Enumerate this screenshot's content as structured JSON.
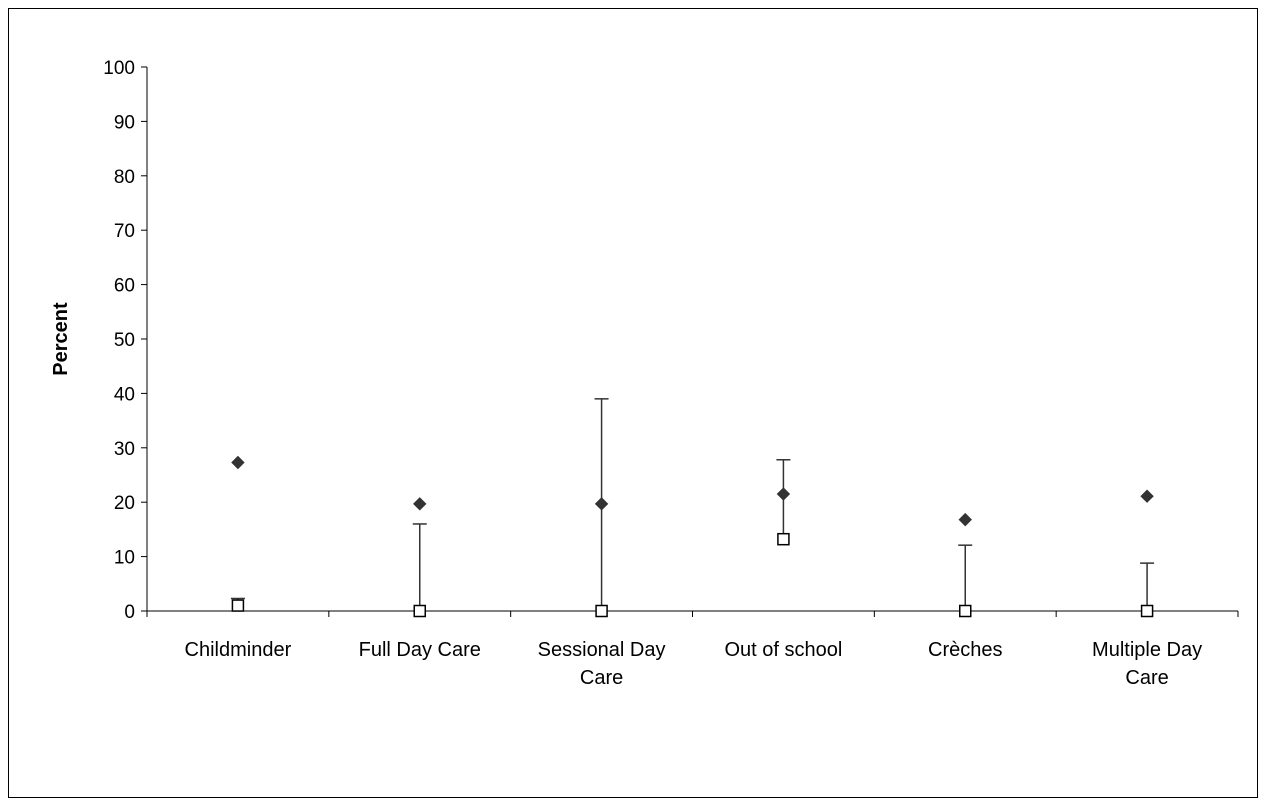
{
  "chart_data": {
    "type": "scatter",
    "title": "",
    "xlabel": "",
    "ylabel": "Percent",
    "ylim": [
      0,
      100
    ],
    "y_ticks": [
      0,
      10,
      20,
      30,
      40,
      50,
      60,
      70,
      80,
      90,
      100
    ],
    "categories": [
      [
        "Childminder"
      ],
      [
        "Full Day Care"
      ],
      [
        "Sessional Day",
        "Care"
      ],
      [
        "Out of school"
      ],
      [
        "Crèches"
      ],
      [
        "Multiple Day",
        "Care"
      ]
    ],
    "series": [
      {
        "marker": "filled-diamond",
        "color": "#333333",
        "values": [
          27.3,
          19.7,
          19.7,
          21.5,
          16.8,
          21.1
        ]
      },
      {
        "marker": "open-square",
        "color": "#000000",
        "values": [
          1.0,
          0.0,
          0.0,
          13.2,
          0.0,
          0.0
        ],
        "error_upper": [
          2.3,
          16.0,
          39.0,
          27.8,
          12.1,
          8.8
        ]
      }
    ],
    "grid": false,
    "legend": "none"
  }
}
